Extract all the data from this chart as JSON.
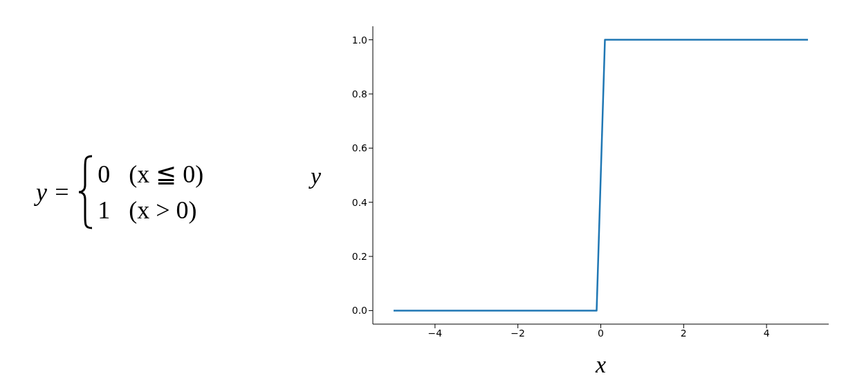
{
  "chart_data": {
    "type": "line",
    "xlabel": "x",
    "ylabel": "y",
    "annotations": [
      "y =",
      "0   (x ≦ 0)",
      "1   (x > 0)"
    ],
    "series": [
      {
        "color": "#1f77b4",
        "x": [
          -5,
          -0.1,
          0.1,
          5
        ],
        "values": [
          0,
          0,
          1,
          1
        ]
      }
    ],
    "xlim": [
      -5.5,
      5.5
    ],
    "ylim": [
      -0.05,
      1.05
    ],
    "xticks": [
      {
        "value": -4,
        "label": "−4"
      },
      {
        "value": -2,
        "label": "−2"
      },
      0,
      2,
      4
    ],
    "yticks": [
      {
        "value": 0,
        "label": "0.0"
      },
      {
        "value": 0.2,
        "label": "0.2"
      },
      {
        "value": 0.4,
        "label": "0.4"
      },
      {
        "value": 0.6,
        "label": "0.6"
      },
      {
        "value": 0.8,
        "label": "0.8"
      },
      {
        "value": 1,
        "label": "1.0"
      }
    ],
    "grid": false,
    "legend": false,
    "marker": "none",
    "line_style": "solid"
  }
}
